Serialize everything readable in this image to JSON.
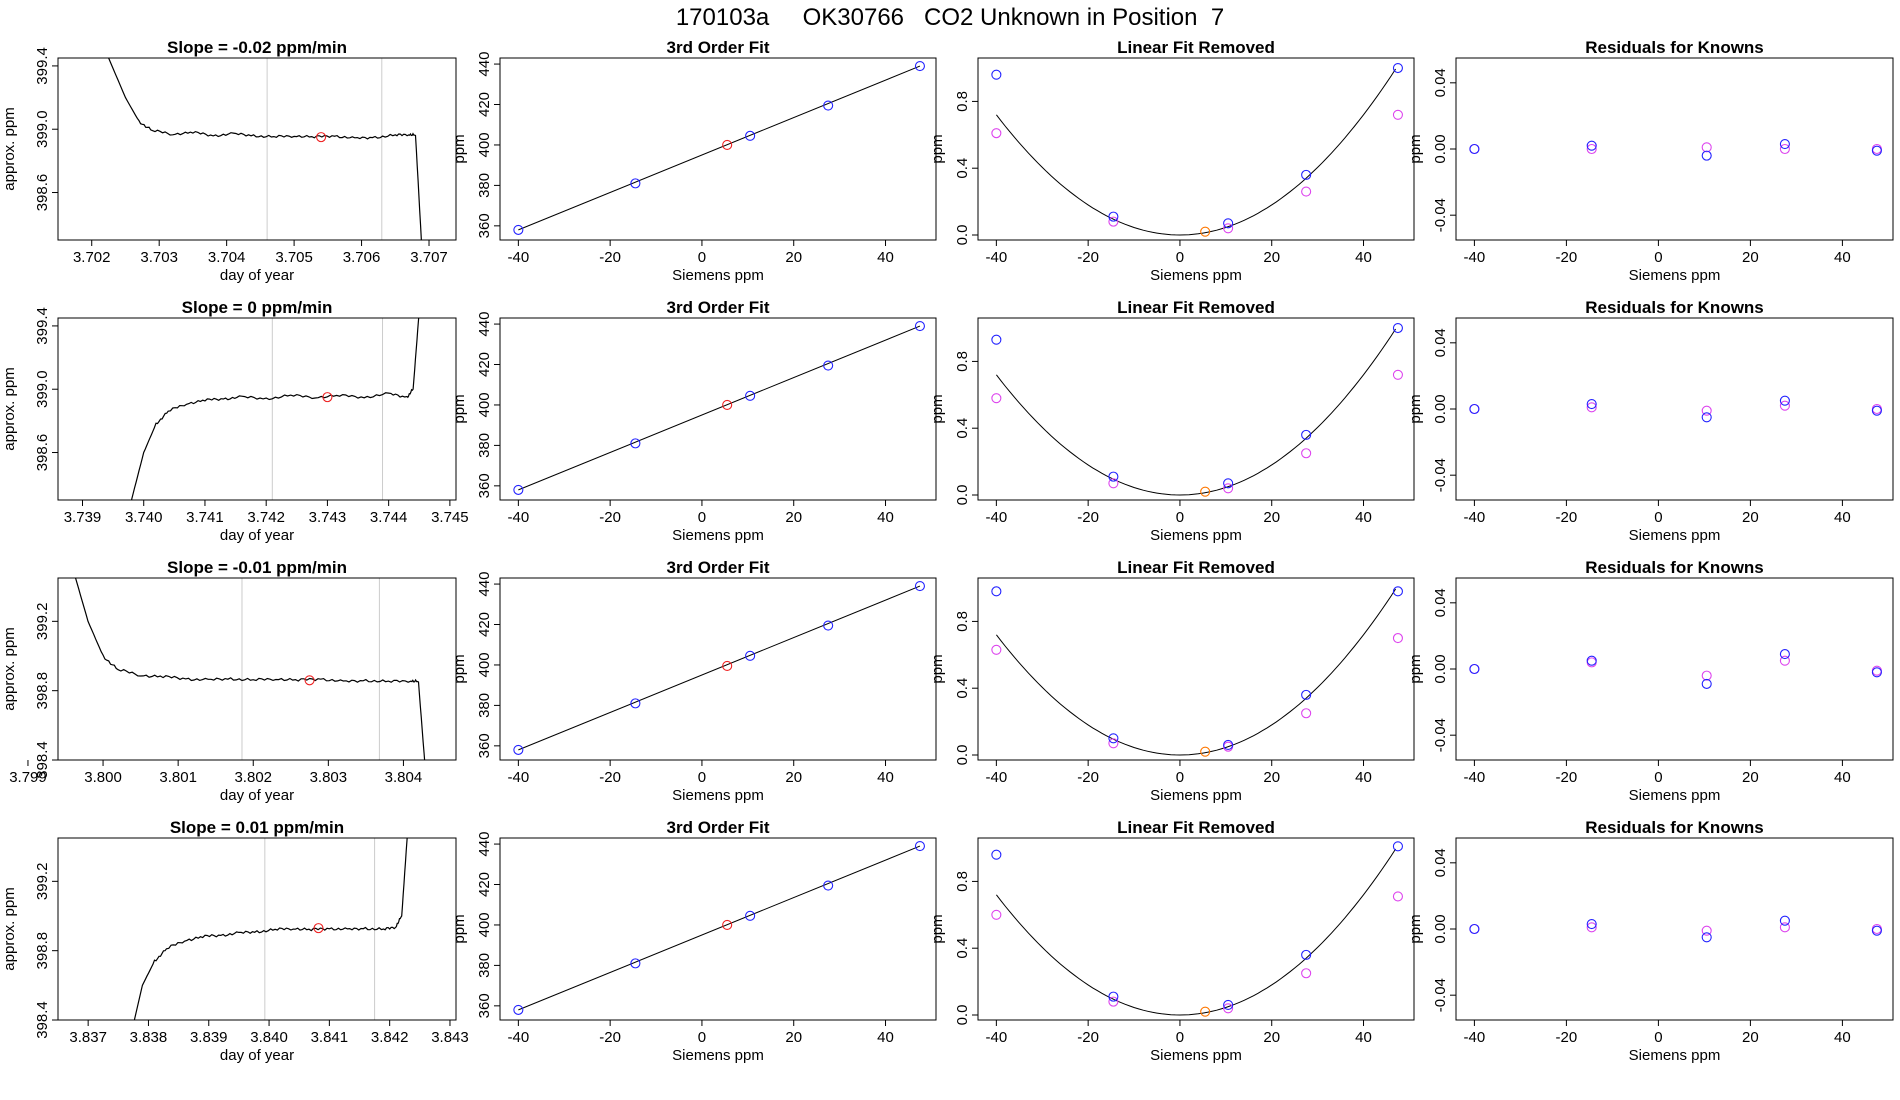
{
  "page_title": "170103a     OK30766   CO2 Unknown in Position  7",
  "colors": {
    "line": "#000000",
    "frame": "#000000",
    "known_blue": "#2222ff",
    "known_magenta": "#dd44ee",
    "unknown_red": "#ee2222",
    "unknown_orange": "#ff7700",
    "window_marker": "#cccccc"
  },
  "chart_data": [
    {
      "type": "line",
      "title": "Slope =  -0.02  ppm/min",
      "xlabel": "day of year",
      "ylabel": "approx. ppm",
      "xlim": [
        3.7015,
        3.7074
      ],
      "ylim": [
        398.3,
        399.45
      ],
      "xticks": [
        "3.702",
        "3.703",
        "3.704",
        "3.705",
        "3.706",
        "3.707"
      ],
      "yticks": [
        "398.6",
        "399.0",
        "399.4"
      ],
      "window": [
        3.7046,
        3.7063
      ],
      "trace": [
        [
          3.7022,
          399.5
        ],
        [
          3.7025,
          399.2
        ],
        [
          3.7027,
          399.05
        ],
        [
          3.7029,
          398.99
        ],
        [
          3.7032,
          398.97
        ],
        [
          3.7035,
          398.98
        ],
        [
          3.7038,
          398.96
        ],
        [
          3.7041,
          398.97
        ],
        [
          3.7044,
          398.96
        ],
        [
          3.7047,
          398.95
        ],
        [
          3.705,
          398.96
        ],
        [
          3.7053,
          398.95
        ],
        [
          3.7056,
          398.96
        ],
        [
          3.7059,
          398.94
        ],
        [
          3.7062,
          398.95
        ],
        [
          3.7065,
          398.96
        ],
        [
          3.7067,
          398.97
        ],
        [
          3.7068,
          398.96
        ],
        [
          3.7069,
          398.2
        ]
      ],
      "marker": [
        3.7054,
        398.95
      ]
    },
    {
      "type": "scatter",
      "title": "3rd Order Fit",
      "xlabel": "Siemens ppm",
      "ylabel": "ppm",
      "xlim": [
        -44,
        51
      ],
      "ylim": [
        353,
        443
      ],
      "xticks": [
        "-40",
        "-20",
        "0",
        "20",
        "40"
      ],
      "yticks": [
        "360",
        "380",
        "400",
        "420",
        "440"
      ],
      "knowns": [
        [
          -40,
          358
        ],
        [
          -14.5,
          381
        ],
        [
          10.5,
          404.5
        ],
        [
          27.5,
          419.5
        ],
        [
          47.5,
          439
        ]
      ],
      "unknown": [
        5.5,
        400
      ]
    },
    {
      "type": "scatter",
      "title": "Linear Fit Removed",
      "xlabel": "Siemens ppm",
      "ylabel": "ppm",
      "xlim": [
        -44,
        51
      ],
      "ylim": [
        -0.03,
        1.06
      ],
      "xticks": [
        "-40",
        "-20",
        "0",
        "20",
        "40"
      ],
      "yticks": [
        "0.0",
        "0.4",
        "0.8"
      ],
      "curve_coef": 0.00045,
      "knowns_blue": [
        [
          -40,
          0.96
        ],
        [
          -14.5,
          0.11
        ],
        [
          10.5,
          0.07
        ],
        [
          27.5,
          0.36
        ],
        [
          47.5,
          1.0
        ]
      ],
      "knowns_magenta": [
        [
          -40,
          0.61
        ],
        [
          -14.5,
          0.08
        ],
        [
          10.5,
          0.04
        ],
        [
          27.5,
          0.26
        ],
        [
          47.5,
          0.72
        ]
      ],
      "unknown": [
        5.5,
        0.02
      ]
    },
    {
      "type": "scatter",
      "title": "Residuals for Knowns",
      "xlabel": "Siemens ppm",
      "ylabel": "ppm",
      "xlim": [
        -44,
        51
      ],
      "ylim": [
        -0.055,
        0.055
      ],
      "xticks": [
        "-40",
        "-20",
        "0",
        "20",
        "40"
      ],
      "yticks": [
        "-0.04",
        "0.00",
        "0.04"
      ],
      "blue": [
        [
          -40,
          0.0
        ],
        [
          -14.5,
          0.002
        ],
        [
          10.5,
          -0.004
        ],
        [
          27.5,
          0.003
        ],
        [
          47.5,
          -0.001
        ]
      ],
      "magenta": [
        [
          -40,
          0.0
        ],
        [
          -14.5,
          0.0
        ],
        [
          10.5,
          0.001
        ],
        [
          27.5,
          0.0
        ],
        [
          47.5,
          0.0
        ]
      ]
    },
    {
      "type": "line",
      "title": "Slope =  0  ppm/min",
      "xlabel": "day of year",
      "ylabel": "approx. ppm",
      "xlim": [
        3.7386,
        3.7451
      ],
      "ylim": [
        398.3,
        399.45
      ],
      "xticks": [
        "3.739",
        "3.740",
        "3.741",
        "3.742",
        "3.743",
        "3.744",
        "3.745"
      ],
      "yticks": [
        "398.6",
        "399.0",
        "399.4"
      ],
      "window": [
        3.7421,
        3.7439
      ],
      "trace": [
        [
          3.7398,
          398.3
        ],
        [
          3.74,
          398.6
        ],
        [
          3.7402,
          398.78
        ],
        [
          3.7404,
          398.86
        ],
        [
          3.7407,
          398.91
        ],
        [
          3.741,
          398.93
        ],
        [
          3.7413,
          398.94
        ],
        [
          3.7416,
          398.95
        ],
        [
          3.742,
          398.94
        ],
        [
          3.7424,
          398.96
        ],
        [
          3.7428,
          398.95
        ],
        [
          3.7432,
          398.96
        ],
        [
          3.7436,
          398.95
        ],
        [
          3.744,
          398.97
        ],
        [
          3.7443,
          398.95
        ],
        [
          3.7444,
          399.0
        ],
        [
          3.7445,
          399.5
        ]
      ],
      "marker": [
        3.743,
        398.95
      ]
    },
    {
      "type": "scatter",
      "title": "3rd Order Fit",
      "xlabel": "Siemens ppm",
      "ylabel": "ppm",
      "xlim": [
        -44,
        51
      ],
      "ylim": [
        353,
        443
      ],
      "xticks": [
        "-40",
        "-20",
        "0",
        "20",
        "40"
      ],
      "yticks": [
        "360",
        "380",
        "400",
        "420",
        "440"
      ],
      "knowns": [
        [
          -40,
          358
        ],
        [
          -14.5,
          381
        ],
        [
          10.5,
          404.5
        ],
        [
          27.5,
          419.5
        ],
        [
          47.5,
          439
        ]
      ],
      "unknown": [
        5.5,
        400
      ]
    },
    {
      "type": "scatter",
      "title": "Linear Fit Removed",
      "xlabel": "Siemens ppm",
      "ylabel": "ppm",
      "xlim": [
        -44,
        51
      ],
      "ylim": [
        -0.03,
        1.06
      ],
      "xticks": [
        "-40",
        "-20",
        "0",
        "20",
        "40"
      ],
      "yticks": [
        "0.0",
        "0.4",
        "0.8"
      ],
      "curve_coef": 0.00045,
      "knowns_blue": [
        [
          -40,
          0.93
        ],
        [
          -14.5,
          0.11
        ],
        [
          10.5,
          0.07
        ],
        [
          27.5,
          0.36
        ],
        [
          47.5,
          1.0
        ]
      ],
      "knowns_magenta": [
        [
          -40,
          0.58
        ],
        [
          -14.5,
          0.07
        ],
        [
          10.5,
          0.04
        ],
        [
          27.5,
          0.25
        ],
        [
          47.5,
          0.72
        ]
      ],
      "unknown": [
        5.5,
        0.02
      ]
    },
    {
      "type": "scatter",
      "title": "Residuals for Knowns",
      "xlabel": "Siemens ppm",
      "ylabel": "ppm",
      "xlim": [
        -44,
        51
      ],
      "ylim": [
        -0.055,
        0.055
      ],
      "xticks": [
        "-40",
        "-20",
        "0",
        "20",
        "40"
      ],
      "yticks": [
        "-0.04",
        "0.00",
        "0.04"
      ],
      "blue": [
        [
          -40,
          0.0
        ],
        [
          -14.5,
          0.003
        ],
        [
          10.5,
          -0.005
        ],
        [
          27.5,
          0.005
        ],
        [
          47.5,
          -0.001
        ]
      ],
      "magenta": [
        [
          -40,
          0.0
        ],
        [
          -14.5,
          0.001
        ],
        [
          10.5,
          -0.001
        ],
        [
          27.5,
          0.002
        ],
        [
          47.5,
          0.0
        ]
      ]
    },
    {
      "type": "line",
      "title": "Slope =  -0.01  ppm/min",
      "xlabel": "day of year",
      "ylabel": "approx. ppm",
      "xlim": [
        3.7994,
        3.8047
      ],
      "ylim": [
        398.4,
        399.45
      ],
      "xticks": [
        "3.799",
        "3.800",
        "3.801",
        "3.802",
        "3.803",
        "3.804"
      ],
      "yticks": [
        "398.4",
        "398.8",
        "399.2"
      ],
      "window": [
        3.80185,
        3.80368
      ],
      "trace": [
        [
          3.7996,
          399.5
        ],
        [
          3.7998,
          399.2
        ],
        [
          3.8,
          399.0
        ],
        [
          3.8002,
          398.92
        ],
        [
          3.8005,
          398.89
        ],
        [
          3.8008,
          398.88
        ],
        [
          3.8011,
          398.87
        ],
        [
          3.8014,
          398.86
        ],
        [
          3.8017,
          398.87
        ],
        [
          3.802,
          398.86
        ],
        [
          3.8023,
          398.87
        ],
        [
          3.8026,
          398.86
        ],
        [
          3.8029,
          398.87
        ],
        [
          3.8032,
          398.85
        ],
        [
          3.8035,
          398.86
        ],
        [
          3.8038,
          398.85
        ],
        [
          3.8041,
          398.86
        ],
        [
          3.8042,
          398.85
        ],
        [
          3.8043,
          398.3
        ]
      ],
      "marker": [
        3.80275,
        398.86
      ]
    },
    {
      "type": "scatter",
      "title": "3rd Order Fit",
      "xlabel": "Siemens ppm",
      "ylabel": "ppm",
      "xlim": [
        -44,
        51
      ],
      "ylim": [
        353,
        443
      ],
      "xticks": [
        "-40",
        "-20",
        "0",
        "20",
        "40"
      ],
      "yticks": [
        "360",
        "380",
        "400",
        "420",
        "440"
      ],
      "knowns": [
        [
          -40,
          358
        ],
        [
          -14.5,
          381
        ],
        [
          10.5,
          404.5
        ],
        [
          27.5,
          419.5
        ],
        [
          47.5,
          439
        ]
      ],
      "unknown": [
        5.5,
        399.5
      ]
    },
    {
      "type": "scatter",
      "title": "Linear Fit Removed",
      "xlabel": "Siemens ppm",
      "ylabel": "ppm",
      "xlim": [
        -44,
        51
      ],
      "ylim": [
        -0.03,
        1.06
      ],
      "xticks": [
        "-40",
        "-20",
        "0",
        "20",
        "40"
      ],
      "yticks": [
        "0.0",
        "0.4",
        "0.8"
      ],
      "curve_coef": 0.00045,
      "knowns_blue": [
        [
          -40,
          0.98
        ],
        [
          -14.5,
          0.1
        ],
        [
          10.5,
          0.06
        ],
        [
          27.5,
          0.36
        ],
        [
          47.5,
          0.98
        ]
      ],
      "knowns_magenta": [
        [
          -40,
          0.63
        ],
        [
          -14.5,
          0.07
        ],
        [
          10.5,
          0.05
        ],
        [
          27.5,
          0.25
        ],
        [
          47.5,
          0.7
        ]
      ],
      "unknown": [
        5.5,
        0.02
      ]
    },
    {
      "type": "scatter",
      "title": "Residuals for Knowns",
      "xlabel": "Siemens ppm",
      "ylabel": "ppm",
      "xlim": [
        -44,
        51
      ],
      "ylim": [
        -0.055,
        0.055
      ],
      "xticks": [
        "-40",
        "-20",
        "0",
        "20",
        "40"
      ],
      "yticks": [
        "-0.04",
        "0.00",
        "0.04"
      ],
      "blue": [
        [
          -40,
          0.0
        ],
        [
          -14.5,
          0.005
        ],
        [
          10.5,
          -0.009
        ],
        [
          27.5,
          0.009
        ],
        [
          47.5,
          -0.002
        ]
      ],
      "magenta": [
        [
          -40,
          0.0
        ],
        [
          -14.5,
          0.004
        ],
        [
          10.5,
          -0.004
        ],
        [
          27.5,
          0.005
        ],
        [
          47.5,
          -0.001
        ]
      ]
    },
    {
      "type": "line",
      "title": "Slope =  0.01  ppm/min",
      "xlabel": "day of year",
      "ylabel": "approx. ppm",
      "xlim": [
        3.8365,
        3.8431
      ],
      "ylim": [
        398.4,
        399.45
      ],
      "xticks": [
        "3.837",
        "3.838",
        "3.839",
        "3.840",
        "3.841",
        "3.842",
        "3.843"
      ],
      "yticks": [
        "398.4",
        "398.8",
        "399.2"
      ],
      "window": [
        3.83993,
        3.84175
      ],
      "trace": [
        [
          3.8377,
          398.3
        ],
        [
          3.8379,
          398.6
        ],
        [
          3.8381,
          398.74
        ],
        [
          3.8383,
          398.81
        ],
        [
          3.8386,
          398.86
        ],
        [
          3.8389,
          398.88
        ],
        [
          3.8392,
          398.89
        ],
        [
          3.8395,
          398.9
        ],
        [
          3.8398,
          398.91
        ],
        [
          3.8401,
          398.92
        ],
        [
          3.8404,
          398.93
        ],
        [
          3.8407,
          398.92
        ],
        [
          3.841,
          398.93
        ],
        [
          3.8413,
          398.92
        ],
        [
          3.8416,
          398.93
        ],
        [
          3.8419,
          398.92
        ],
        [
          3.8421,
          398.94
        ],
        [
          3.8422,
          399.0
        ],
        [
          3.8423,
          399.5
        ]
      ],
      "marker": [
        3.84082,
        398.93
      ]
    },
    {
      "type": "scatter",
      "title": "3rd Order Fit",
      "xlabel": "Siemens ppm",
      "ylabel": "ppm",
      "xlim": [
        -44,
        51
      ],
      "ylim": [
        353,
        443
      ],
      "xticks": [
        "-40",
        "-20",
        "0",
        "20",
        "40"
      ],
      "yticks": [
        "360",
        "380",
        "400",
        "420",
        "440"
      ],
      "knowns": [
        [
          -40,
          358
        ],
        [
          -14.5,
          381
        ],
        [
          10.5,
          404.5
        ],
        [
          27.5,
          419.5
        ],
        [
          47.5,
          439
        ]
      ],
      "unknown": [
        5.5,
        400
      ]
    },
    {
      "type": "scatter",
      "title": "Linear Fit Removed",
      "xlabel": "Siemens ppm",
      "ylabel": "ppm",
      "xlim": [
        -44,
        51
      ],
      "ylim": [
        -0.03,
        1.06
      ],
      "xticks": [
        "-40",
        "-20",
        "0",
        "20",
        "40"
      ],
      "yticks": [
        "0.0",
        "0.4",
        "0.8"
      ],
      "curve_coef": 0.00045,
      "knowns_blue": [
        [
          -40,
          0.96
        ],
        [
          -14.5,
          0.11
        ],
        [
          10.5,
          0.06
        ],
        [
          27.5,
          0.36
        ],
        [
          47.5,
          1.01
        ]
      ],
      "knowns_magenta": [
        [
          -40,
          0.6
        ],
        [
          -14.5,
          0.08
        ],
        [
          10.5,
          0.04
        ],
        [
          27.5,
          0.25
        ],
        [
          47.5,
          0.71
        ]
      ],
      "unknown": [
        5.5,
        0.02
      ]
    },
    {
      "type": "scatter",
      "title": "Residuals for Knowns",
      "xlabel": "Siemens ppm",
      "ylabel": "ppm",
      "xlim": [
        -44,
        51
      ],
      "ylim": [
        -0.055,
        0.055
      ],
      "xticks": [
        "-40",
        "-20",
        "0",
        "20",
        "40"
      ],
      "yticks": [
        "-0.04",
        "0.00",
        "0.04"
      ],
      "blue": [
        [
          -40,
          0.0
        ],
        [
          -14.5,
          0.003
        ],
        [
          10.5,
          -0.005
        ],
        [
          27.5,
          0.005
        ],
        [
          47.5,
          -0.001
        ]
      ],
      "magenta": [
        [
          -40,
          0.0
        ],
        [
          -14.5,
          0.001
        ],
        [
          10.5,
          -0.001
        ],
        [
          27.5,
          0.001
        ],
        [
          47.5,
          0.0
        ]
      ]
    }
  ]
}
